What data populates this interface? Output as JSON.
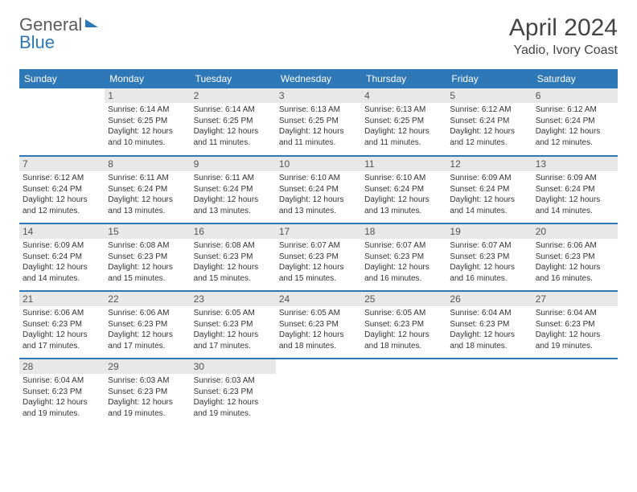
{
  "logo": {
    "text1": "General",
    "text2": "Blue"
  },
  "title": "April 2024",
  "location": "Yadio, Ivory Coast",
  "weekdays": [
    "Sunday",
    "Monday",
    "Tuesday",
    "Wednesday",
    "Thursday",
    "Friday",
    "Saturday"
  ],
  "colors": {
    "brand": "#2f78b7",
    "header_bg": "#2f78b7",
    "header_text": "#ffffff",
    "daynum_bg": "#e8e8e8",
    "text": "#333333"
  },
  "weeks": [
    [
      {
        "n": "",
        "lines": []
      },
      {
        "n": "1",
        "lines": [
          "Sunrise: 6:14 AM",
          "Sunset: 6:25 PM",
          "Daylight: 12 hours and 10 minutes."
        ]
      },
      {
        "n": "2",
        "lines": [
          "Sunrise: 6:14 AM",
          "Sunset: 6:25 PM",
          "Daylight: 12 hours and 11 minutes."
        ]
      },
      {
        "n": "3",
        "lines": [
          "Sunrise: 6:13 AM",
          "Sunset: 6:25 PM",
          "Daylight: 12 hours and 11 minutes."
        ]
      },
      {
        "n": "4",
        "lines": [
          "Sunrise: 6:13 AM",
          "Sunset: 6:25 PM",
          "Daylight: 12 hours and 11 minutes."
        ]
      },
      {
        "n": "5",
        "lines": [
          "Sunrise: 6:12 AM",
          "Sunset: 6:24 PM",
          "Daylight: 12 hours and 12 minutes."
        ]
      },
      {
        "n": "6",
        "lines": [
          "Sunrise: 6:12 AM",
          "Sunset: 6:24 PM",
          "Daylight: 12 hours and 12 minutes."
        ]
      }
    ],
    [
      {
        "n": "7",
        "lines": [
          "Sunrise: 6:12 AM",
          "Sunset: 6:24 PM",
          "Daylight: 12 hours and 12 minutes."
        ]
      },
      {
        "n": "8",
        "lines": [
          "Sunrise: 6:11 AM",
          "Sunset: 6:24 PM",
          "Daylight: 12 hours and 13 minutes."
        ]
      },
      {
        "n": "9",
        "lines": [
          "Sunrise: 6:11 AM",
          "Sunset: 6:24 PM",
          "Daylight: 12 hours and 13 minutes."
        ]
      },
      {
        "n": "10",
        "lines": [
          "Sunrise: 6:10 AM",
          "Sunset: 6:24 PM",
          "Daylight: 12 hours and 13 minutes."
        ]
      },
      {
        "n": "11",
        "lines": [
          "Sunrise: 6:10 AM",
          "Sunset: 6:24 PM",
          "Daylight: 12 hours and 13 minutes."
        ]
      },
      {
        "n": "12",
        "lines": [
          "Sunrise: 6:09 AM",
          "Sunset: 6:24 PM",
          "Daylight: 12 hours and 14 minutes."
        ]
      },
      {
        "n": "13",
        "lines": [
          "Sunrise: 6:09 AM",
          "Sunset: 6:24 PM",
          "Daylight: 12 hours and 14 minutes."
        ]
      }
    ],
    [
      {
        "n": "14",
        "lines": [
          "Sunrise: 6:09 AM",
          "Sunset: 6:24 PM",
          "Daylight: 12 hours and 14 minutes."
        ]
      },
      {
        "n": "15",
        "lines": [
          "Sunrise: 6:08 AM",
          "Sunset: 6:23 PM",
          "Daylight: 12 hours and 15 minutes."
        ]
      },
      {
        "n": "16",
        "lines": [
          "Sunrise: 6:08 AM",
          "Sunset: 6:23 PM",
          "Daylight: 12 hours and 15 minutes."
        ]
      },
      {
        "n": "17",
        "lines": [
          "Sunrise: 6:07 AM",
          "Sunset: 6:23 PM",
          "Daylight: 12 hours and 15 minutes."
        ]
      },
      {
        "n": "18",
        "lines": [
          "Sunrise: 6:07 AM",
          "Sunset: 6:23 PM",
          "Daylight: 12 hours and 16 minutes."
        ]
      },
      {
        "n": "19",
        "lines": [
          "Sunrise: 6:07 AM",
          "Sunset: 6:23 PM",
          "Daylight: 12 hours and 16 minutes."
        ]
      },
      {
        "n": "20",
        "lines": [
          "Sunrise: 6:06 AM",
          "Sunset: 6:23 PM",
          "Daylight: 12 hours and 16 minutes."
        ]
      }
    ],
    [
      {
        "n": "21",
        "lines": [
          "Sunrise: 6:06 AM",
          "Sunset: 6:23 PM",
          "Daylight: 12 hours and 17 minutes."
        ]
      },
      {
        "n": "22",
        "lines": [
          "Sunrise: 6:06 AM",
          "Sunset: 6:23 PM",
          "Daylight: 12 hours and 17 minutes."
        ]
      },
      {
        "n": "23",
        "lines": [
          "Sunrise: 6:05 AM",
          "Sunset: 6:23 PM",
          "Daylight: 12 hours and 17 minutes."
        ]
      },
      {
        "n": "24",
        "lines": [
          "Sunrise: 6:05 AM",
          "Sunset: 6:23 PM",
          "Daylight: 12 hours and 18 minutes."
        ]
      },
      {
        "n": "25",
        "lines": [
          "Sunrise: 6:05 AM",
          "Sunset: 6:23 PM",
          "Daylight: 12 hours and 18 minutes."
        ]
      },
      {
        "n": "26",
        "lines": [
          "Sunrise: 6:04 AM",
          "Sunset: 6:23 PM",
          "Daylight: 12 hours and 18 minutes."
        ]
      },
      {
        "n": "27",
        "lines": [
          "Sunrise: 6:04 AM",
          "Sunset: 6:23 PM",
          "Daylight: 12 hours and 19 minutes."
        ]
      }
    ],
    [
      {
        "n": "28",
        "lines": [
          "Sunrise: 6:04 AM",
          "Sunset: 6:23 PM",
          "Daylight: 12 hours and 19 minutes."
        ]
      },
      {
        "n": "29",
        "lines": [
          "Sunrise: 6:03 AM",
          "Sunset: 6:23 PM",
          "Daylight: 12 hours and 19 minutes."
        ]
      },
      {
        "n": "30",
        "lines": [
          "Sunrise: 6:03 AM",
          "Sunset: 6:23 PM",
          "Daylight: 12 hours and 19 minutes."
        ]
      },
      {
        "n": "",
        "lines": []
      },
      {
        "n": "",
        "lines": []
      },
      {
        "n": "",
        "lines": []
      },
      {
        "n": "",
        "lines": []
      }
    ]
  ]
}
